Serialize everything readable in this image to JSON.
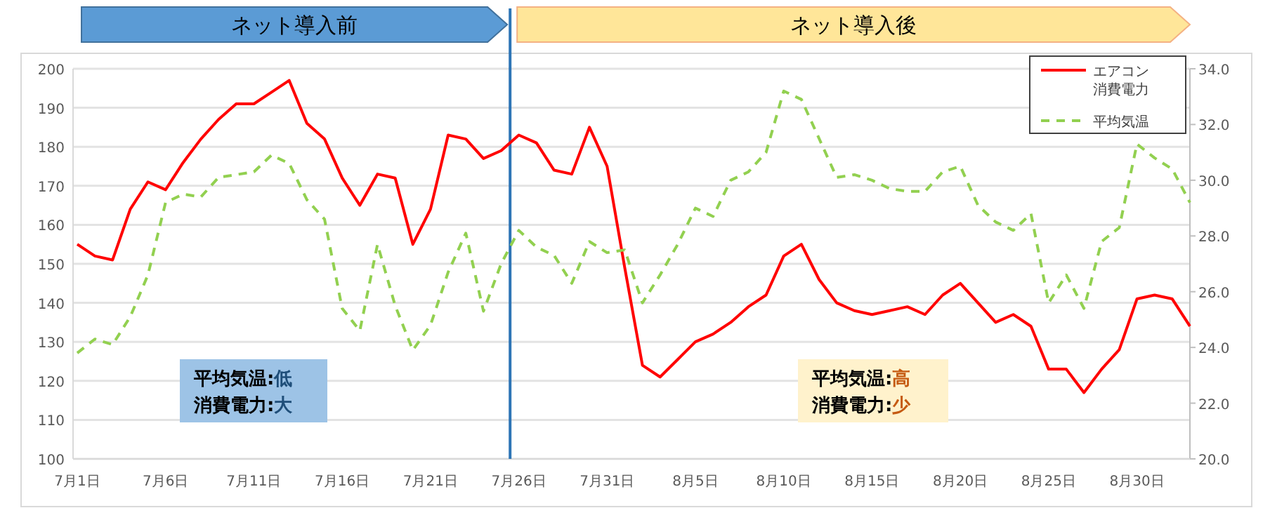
{
  "chart_data": {
    "type": "line",
    "categories": [
      "7月1日",
      null,
      null,
      null,
      null,
      "7月6日",
      null,
      null,
      null,
      null,
      "7月11日",
      null,
      null,
      null,
      null,
      "7月16日",
      null,
      null,
      null,
      null,
      "7月21日",
      null,
      null,
      null,
      null,
      "7月26日",
      null,
      null,
      null,
      null,
      "7月31日",
      null,
      null,
      null,
      null,
      "8月5日",
      null,
      null,
      null,
      null,
      "8月10日",
      null,
      null,
      null,
      null,
      "8月15日",
      null,
      null,
      null,
      null,
      "8月20日",
      null,
      null,
      null,
      null,
      "8月25日",
      null,
      null,
      null,
      null,
      "8月30日",
      null,
      null,
      null
    ],
    "series": [
      {
        "name": "エアコン消費電力",
        "color": "#ff0000",
        "line_style": "solid",
        "values": [
          155,
          152,
          151,
          164,
          171,
          169,
          176,
          182,
          187,
          191,
          191,
          194,
          197,
          186,
          182,
          172,
          165,
          173,
          172,
          155,
          164,
          183,
          182,
          177,
          179,
          183,
          181,
          174,
          173,
          185,
          175,
          149,
          124,
          121,
          125.5,
          130,
          132,
          135,
          139,
          142,
          152,
          155,
          146,
          140,
          138,
          137,
          138,
          139,
          137,
          142,
          145,
          140,
          135,
          137,
          134,
          123,
          123,
          117,
          123,
          128,
          141,
          142,
          141,
          134
        ]
      },
      {
        "name": "平均気温",
        "color": "#92d050",
        "line_style": "dashed",
        "axis": "y2",
        "values": [
          23.8,
          24.3,
          24.1,
          25.1,
          26.6,
          29.2,
          29.5,
          29.4,
          30.1,
          30.2,
          30.3,
          30.9,
          30.6,
          29.3,
          28.6,
          25.4,
          24.6,
          27.7,
          25.5,
          23.9,
          24.8,
          26.7,
          28.1,
          25.3,
          27.0,
          28.2,
          27.6,
          27.3,
          26.3,
          27.8,
          27.4,
          27.5,
          25.6,
          26.6,
          27.7,
          29.0,
          28.7,
          30.0,
          30.3,
          31.0,
          33.2,
          32.9,
          31.5,
          30.1,
          30.2,
          30.0,
          29.7,
          29.6,
          29.6,
          30.3,
          30.5,
          29.1,
          28.5,
          28.2,
          28.8,
          25.6,
          26.6,
          25.4,
          27.8,
          28.3,
          31.3,
          30.8,
          30.4,
          29.2
        ]
      }
    ],
    "ylim": [
      100,
      200
    ],
    "yticks": [
      100,
      110,
      120,
      130,
      140,
      150,
      160,
      170,
      180,
      190,
      200
    ],
    "y2lim": [
      20,
      34
    ],
    "y2ticks": [
      {
        "value": 20,
        "label": "20.0"
      },
      {
        "value": 22,
        "label": "22.0"
      },
      {
        "value": 24,
        "label": "24.0"
      },
      {
        "value": 26,
        "label": "26.0"
      },
      {
        "value": 28,
        "label": "28.0"
      },
      {
        "value": 30,
        "label": "30.0"
      },
      {
        "value": 32,
        "label": "32.0"
      },
      {
        "value": 34,
        "label": "34.0"
      }
    ],
    "annotations": [
      "ネット導入前",
      "ネット導入後",
      "平均気温:低",
      "消費電力:大",
      "平均気温:高",
      "消費電力:少"
    ],
    "grid": "y",
    "legend": "top right",
    "marker": "none"
  }
}
